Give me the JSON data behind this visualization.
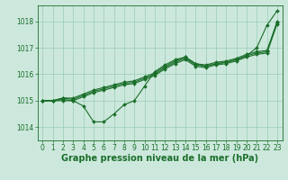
{
  "background_color": "#cce8dc",
  "plot_bg_color": "#cce8dc",
  "grid_color": "#99ccb3",
  "line_color": "#1a6e2a",
  "title": "Graphe pression niveau de la mer (hPa)",
  "xlim": [
    -0.5,
    23.5
  ],
  "ylim": [
    1013.5,
    1018.6
  ],
  "yticks": [
    1014,
    1015,
    1016,
    1017,
    1018
  ],
  "xticks": [
    0,
    1,
    2,
    3,
    4,
    5,
    6,
    7,
    8,
    9,
    10,
    11,
    12,
    13,
    14,
    15,
    16,
    17,
    18,
    19,
    20,
    21,
    22,
    23
  ],
  "series1_x": [
    0,
    1,
    2,
    3,
    4,
    5,
    6,
    7,
    8,
    9,
    10,
    11,
    12,
    13,
    14,
    15,
    16,
    17,
    18,
    19,
    20,
    21,
    22,
    23
  ],
  "series1_y": [
    1015.0,
    1015.0,
    1015.0,
    1015.0,
    1014.8,
    1014.2,
    1014.2,
    1014.5,
    1014.85,
    1015.0,
    1015.55,
    1016.1,
    1016.35,
    1016.55,
    1016.65,
    1016.4,
    1016.3,
    1016.4,
    1016.45,
    1016.55,
    1016.7,
    1017.0,
    1017.85,
    1018.4
  ],
  "series2_x": [
    0,
    1,
    2,
    3,
    4,
    5,
    6,
    7,
    8,
    9,
    10,
    11,
    12,
    13,
    14,
    15,
    16,
    17,
    18,
    19,
    20,
    21,
    22,
    23
  ],
  "series2_y": [
    1015.0,
    1015.0,
    1015.1,
    1015.1,
    1015.25,
    1015.4,
    1015.5,
    1015.6,
    1015.7,
    1015.75,
    1015.9,
    1016.05,
    1016.3,
    1016.5,
    1016.65,
    1016.4,
    1016.35,
    1016.45,
    1016.5,
    1016.6,
    1016.75,
    1016.85,
    1016.9,
    1017.95
  ],
  "series3_x": [
    0,
    1,
    2,
    3,
    4,
    5,
    6,
    7,
    8,
    9,
    10,
    11,
    12,
    13,
    14,
    15,
    16,
    17,
    18,
    19,
    20,
    21,
    22,
    23
  ],
  "series3_y": [
    1015.0,
    1015.0,
    1015.1,
    1015.05,
    1015.2,
    1015.35,
    1015.45,
    1015.55,
    1015.65,
    1015.7,
    1015.85,
    1016.0,
    1016.25,
    1016.45,
    1016.6,
    1016.35,
    1016.3,
    1016.4,
    1016.45,
    1016.55,
    1016.7,
    1016.8,
    1016.85,
    1018.0
  ],
  "series4_x": [
    0,
    1,
    2,
    3,
    4,
    5,
    6,
    7,
    8,
    9,
    10,
    11,
    12,
    13,
    14,
    15,
    16,
    17,
    18,
    19,
    20,
    21,
    22,
    23
  ],
  "series4_y": [
    1015.0,
    1015.0,
    1015.05,
    1015.0,
    1015.15,
    1015.3,
    1015.4,
    1015.5,
    1015.6,
    1015.65,
    1015.8,
    1015.95,
    1016.2,
    1016.4,
    1016.55,
    1016.3,
    1016.25,
    1016.35,
    1016.4,
    1016.5,
    1016.65,
    1016.75,
    1016.8,
    1017.9
  ],
  "title_fontsize": 7,
  "tick_fontsize": 5.5
}
